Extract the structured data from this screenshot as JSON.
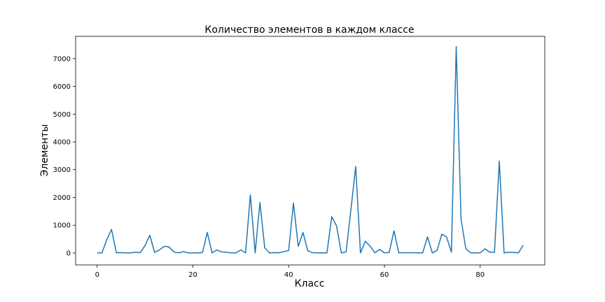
{
  "chart_data": {
    "type": "line",
    "title": "Количество элементов в каждом классе",
    "xlabel": "Класс",
    "ylabel": "Элементы",
    "xlim": [
      -4.5,
      93.5
    ],
    "ylim": [
      -430,
      7800
    ],
    "xticks": [
      0,
      20,
      40,
      60,
      80
    ],
    "yticks": [
      0,
      1000,
      2000,
      3000,
      4000,
      5000,
      6000,
      7000
    ],
    "grid": false,
    "line_color": "#1f77b4",
    "series": [
      {
        "values": [
          5,
          5,
          480,
          850,
          10,
          15,
          5,
          5,
          30,
          10,
          270,
          640,
          20,
          110,
          240,
          220,
          40,
          5,
          50,
          5,
          5,
          5,
          20,
          740,
          5,
          110,
          40,
          30,
          5,
          5,
          110,
          5,
          2090,
          5,
          1820,
          190,
          5,
          15,
          10,
          50,
          90,
          1800,
          240,
          740,
          80,
          10,
          5,
          5,
          5,
          1310,
          980,
          5,
          40,
          1560,
          3110,
          5,
          420,
          250,
          10,
          130,
          5,
          20,
          800,
          10,
          10,
          10,
          10,
          5,
          5,
          580,
          5,
          90,
          680,
          570,
          30,
          7430,
          1230,
          160,
          10,
          5,
          5,
          150,
          30,
          30,
          3310,
          5,
          30,
          20,
          5,
          280
        ]
      }
    ]
  }
}
